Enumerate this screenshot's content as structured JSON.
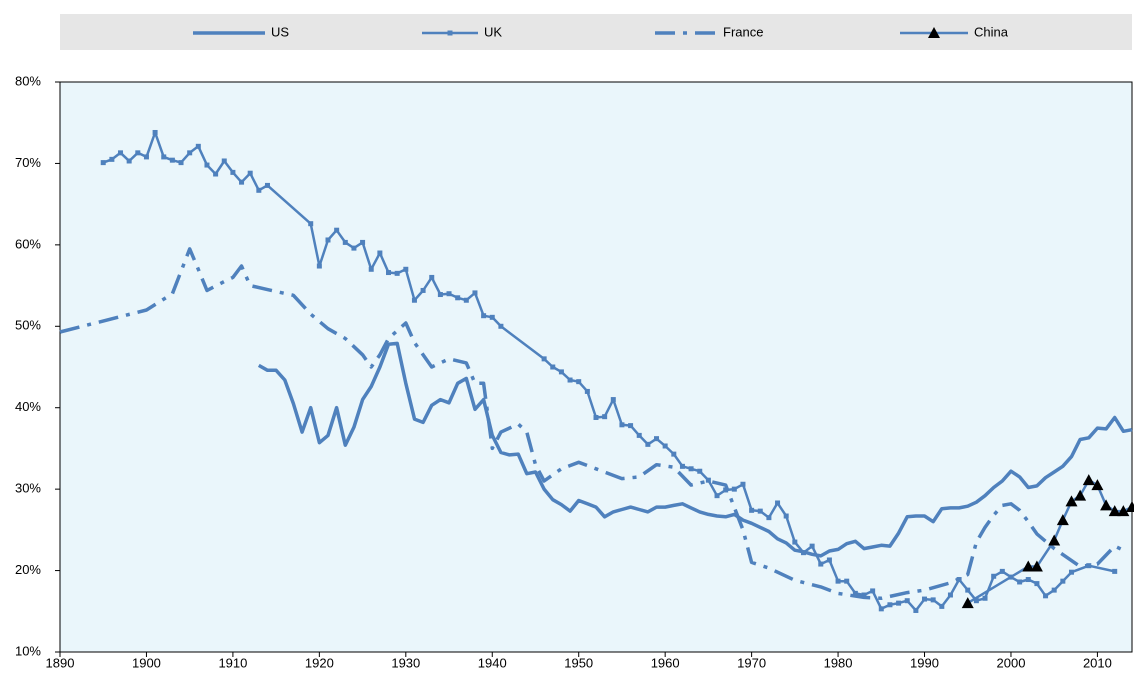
{
  "chart_data": {
    "type": "line",
    "xlim": [
      1890,
      2014
    ],
    "xticks": [
      1890,
      1900,
      1910,
      1920,
      1930,
      1940,
      1950,
      1960,
      1970,
      1980,
      1990,
      2000,
      2010
    ],
    "ylim": [
      10,
      80
    ],
    "yticks": [
      {
        "value": 10,
        "label": "10%"
      },
      {
        "value": 20,
        "label": "20%"
      },
      {
        "value": 30,
        "label": "30%"
      },
      {
        "value": 40,
        "label": "40%"
      },
      {
        "value": 50,
        "label": "50%"
      },
      {
        "value": 60,
        "label": "60%"
      },
      {
        "value": 70,
        "label": "70%"
      },
      {
        "value": 80,
        "label": "80%"
      }
    ],
    "legend": "top",
    "series": [
      {
        "name": "US",
        "color": "#4f81bd",
        "style": "solid",
        "x": [
          1913,
          1914,
          1915,
          1916,
          1917,
          1918,
          1919,
          1920,
          1921,
          1922,
          1923,
          1924,
          1925,
          1926,
          1927,
          1928,
          1929,
          1930,
          1931,
          1932,
          1933,
          1934,
          1935,
          1936,
          1937,
          1938,
          1939,
          1940,
          1941,
          1942,
          1943,
          1944,
          1945,
          1946,
          1947,
          1948,
          1949,
          1950,
          1951,
          1952,
          1953,
          1954,
          1955,
          1956,
          1957,
          1958,
          1959,
          1960,
          1961,
          1962,
          1963,
          1964,
          1965,
          1966,
          1967,
          1968,
          1969,
          1970,
          1971,
          1972,
          1973,
          1974,
          1975,
          1976,
          1977,
          1978,
          1979,
          1980,
          1981,
          1982,
          1983,
          1984,
          1985,
          1986,
          1987,
          1988,
          1989,
          1990,
          1991,
          1992,
          1993,
          1994,
          1995,
          1996,
          1997,
          1998,
          1999,
          2000,
          2001,
          2002,
          2003,
          2004,
          2005,
          2006,
          2007,
          2008,
          2009,
          2010,
          2011,
          2012,
          2013,
          2014
        ],
        "values": [
          45.2,
          44.6,
          44.6,
          43.4,
          40.5,
          37.0,
          40.0,
          35.7,
          36.6,
          40.0,
          35.4,
          37.6,
          41.0,
          42.6,
          45.0,
          47.8,
          47.9,
          43.0,
          38.6,
          38.2,
          40.3,
          41.0,
          40.6,
          43.0,
          43.6,
          39.8,
          41.0,
          36.6,
          34.5,
          34.2,
          34.3,
          31.9,
          32.1,
          30.0,
          28.7,
          28.1,
          27.3,
          28.6,
          28.2,
          27.8,
          26.6,
          27.2,
          27.5,
          27.8,
          27.5,
          27.2,
          27.8,
          27.8,
          28.0,
          28.2,
          27.7,
          27.2,
          26.9,
          26.7,
          26.6,
          26.9,
          26.2,
          25.8,
          25.3,
          24.8,
          23.9,
          23.4,
          22.5,
          22.3,
          22.0,
          21.8,
          22.4,
          22.6,
          23.3,
          23.6,
          22.7,
          22.9,
          23.1,
          23.0,
          24.6,
          26.6,
          26.7,
          26.7,
          26.0,
          27.6,
          27.7,
          27.7,
          27.9,
          28.4,
          29.2,
          30.2,
          31.0,
          32.2,
          31.5,
          30.2,
          30.4,
          31.4,
          32.1,
          32.8,
          34.0,
          36.1,
          36.3,
          37.5,
          37.4,
          38.8,
          37.1,
          37.3
        ]
      },
      {
        "name": "UK",
        "color": "#4f81bd",
        "style": "square",
        "x": [
          1895,
          1896,
          1897,
          1898,
          1899,
          1900,
          1901,
          1902,
          1903,
          1904,
          1905,
          1906,
          1907,
          1908,
          1909,
          1910,
          1911,
          1912,
          1913,
          1914,
          1919,
          1920,
          1921,
          1922,
          1923,
          1924,
          1925,
          1926,
          1927,
          1928,
          1929,
          1930,
          1931,
          1932,
          1933,
          1934,
          1935,
          1936,
          1937,
          1938,
          1939,
          1940,
          1941,
          1946,
          1947,
          1948,
          1949,
          1950,
          1951,
          1952,
          1953,
          1954,
          1955,
          1956,
          1957,
          1958,
          1959,
          1960,
          1961,
          1962,
          1963,
          1964,
          1965,
          1966,
          1967,
          1968,
          1969,
          1970,
          1971,
          1972,
          1973,
          1974,
          1975,
          1976,
          1977,
          1978,
          1979,
          1980,
          1981,
          1982,
          1983,
          1984,
          1985,
          1986,
          1987,
          1988,
          1989,
          1990,
          1991,
          1992,
          1993,
          1994,
          1995,
          1996,
          1997,
          1998,
          1999,
          2000,
          2001,
          2002,
          2003,
          2004,
          2005,
          2006,
          2007,
          2009,
          2012
        ],
        "values": [
          70.1,
          70.5,
          71.3,
          70.3,
          71.3,
          70.8,
          73.8,
          70.8,
          70.4,
          70.1,
          71.3,
          72.1,
          69.8,
          68.7,
          70.3,
          68.9,
          67.7,
          68.8,
          66.7,
          67.3,
          62.6,
          57.4,
          60.6,
          61.8,
          60.3,
          59.6,
          60.3,
          57.0,
          59.0,
          56.6,
          56.5,
          57.0,
          53.2,
          54.4,
          56.0,
          53.9,
          54.0,
          53.5,
          53.2,
          54.1,
          51.3,
          51.1,
          50.0,
          46.0,
          45.0,
          44.4,
          43.4,
          43.2,
          42.0,
          38.8,
          38.9,
          41.0,
          37.9,
          37.8,
          36.6,
          35.5,
          36.2,
          35.3,
          34.3,
          32.8,
          32.5,
          32.2,
          31.1,
          29.2,
          29.9,
          30.0,
          30.6,
          27.4,
          27.3,
          26.5,
          28.3,
          26.7,
          23.5,
          22.2,
          23.0,
          20.8,
          21.3,
          18.7,
          18.7,
          17.2,
          17.0,
          17.5,
          15.3,
          15.8,
          16.0,
          16.3,
          15.1,
          16.5,
          16.4,
          15.6,
          17.0,
          18.9,
          17.6,
          16.3,
          16.6,
          19.3,
          19.9,
          19.2,
          18.6,
          18.9,
          18.4,
          16.9,
          17.6,
          18.7,
          19.8,
          20.6,
          19.9
        ]
      },
      {
        "name": "France",
        "color": "#4f81bd",
        "style": "dashdot",
        "x": [
          1890,
          1900,
          1903,
          1905,
          1906,
          1907,
          1909,
          1910,
          1911,
          1912,
          1914,
          1917,
          1919,
          1921,
          1923,
          1925,
          1926,
          1927,
          1928,
          1930,
          1931,
          1933,
          1935,
          1937,
          1938,
          1939,
          1940,
          1941,
          1943,
          1944,
          1945,
          1946,
          1948,
          1950,
          1952,
          1955,
          1957,
          1959,
          1961,
          1963,
          1965,
          1967,
          1969,
          1970,
          1972,
          1975,
          1978,
          1980,
          1983,
          1985,
          1988,
          1990,
          1993,
          1995,
          1996,
          1997,
          1998,
          1999,
          2000,
          2001,
          2002,
          2003,
          2005,
          2008,
          2010,
          2012,
          2013
        ],
        "values": [
          49.3,
          52.0,
          54.0,
          59.5,
          57.0,
          54.4,
          55.5,
          56.0,
          57.4,
          55.0,
          54.5,
          53.8,
          51.5,
          49.7,
          48.5,
          46.5,
          45.0,
          46.5,
          48.5,
          50.4,
          48.0,
          45.0,
          46.0,
          45.5,
          43.0,
          43.0,
          35.0,
          37.0,
          38.0,
          37.0,
          33.0,
          31.0,
          32.5,
          33.3,
          32.5,
          31.3,
          31.5,
          33.0,
          32.7,
          30.5,
          31.0,
          30.5,
          25.0,
          21.0,
          20.3,
          18.8,
          18.0,
          17.2,
          16.7,
          16.6,
          17.3,
          17.6,
          18.5,
          19.5,
          23.5,
          25.3,
          26.8,
          28.0,
          28.2,
          27.4,
          26.0,
          24.5,
          22.7,
          20.5,
          20.8,
          23.0,
          22.5
        ]
      },
      {
        "name": "China",
        "color": "#4f81bd",
        "marker_color": "#000000",
        "style": "triangle",
        "x": [
          1995,
          2002,
          2003,
          2005,
          2006,
          2007,
          2008,
          2009,
          2010,
          2011,
          2012,
          2013,
          2014
        ],
        "values": [
          16.0,
          20.5,
          20.5,
          23.7,
          26.2,
          28.5,
          29.2,
          31.1,
          30.5,
          28.0,
          27.3,
          27.3,
          27.8
        ]
      }
    ]
  }
}
